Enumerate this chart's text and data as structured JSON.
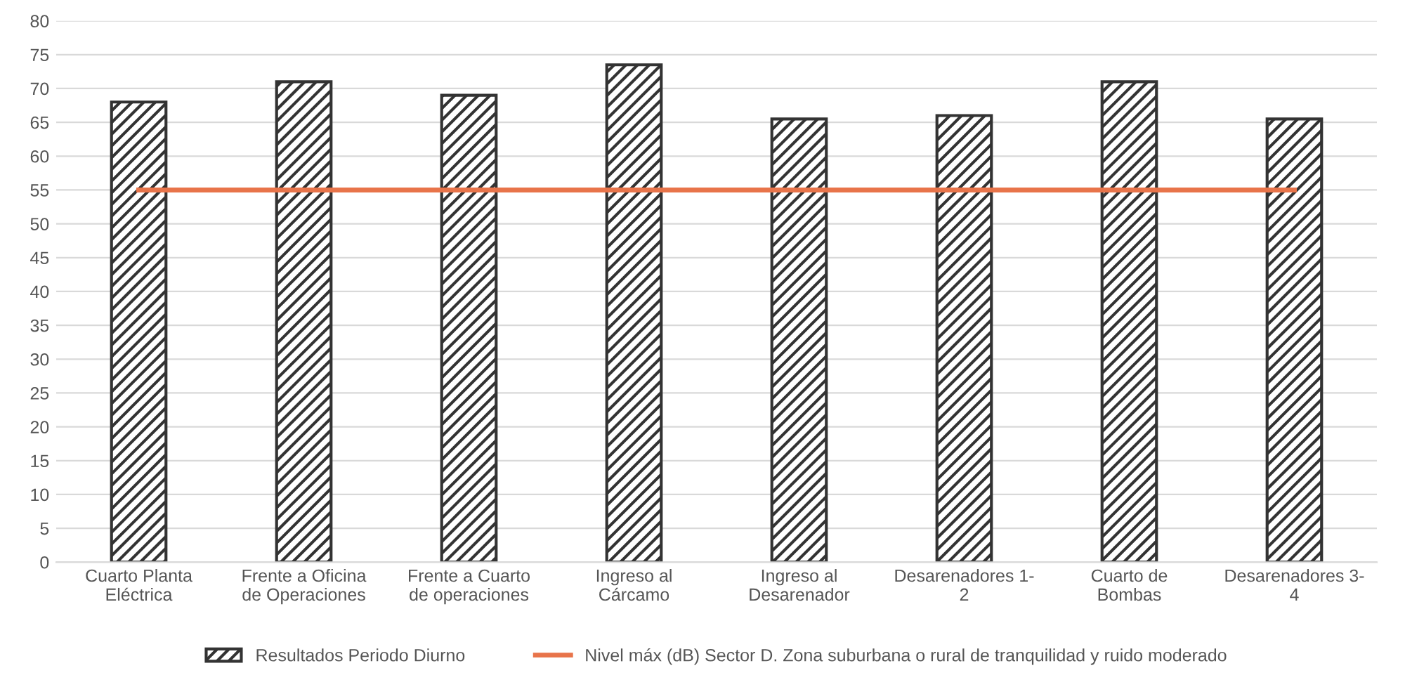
{
  "chart_data": {
    "type": "bar",
    "categories": [
      "Cuarto Planta\nEléctrica",
      "Frente a Oficina\nde Operaciones",
      "Frente a Cuarto\nde operaciones",
      "Ingreso al\nCárcamo",
      "Ingreso al\nDesarenador",
      "Desarenadores 1-\n2",
      "Cuarto de\nBombas",
      "Desarenadores 3-\n4"
    ],
    "series": [
      {
        "name": "Resultados Periodo Diurno",
        "color": "#333333",
        "values": [
          68,
          71,
          69,
          73.5,
          65.5,
          66,
          71,
          65.5
        ]
      },
      {
        "name": "Nivel máx (dB) Sector D. Zona suburbana o rural de tranquilidad y ruido moderado",
        "type": "line",
        "color": "#e8744a",
        "values": [
          55,
          55,
          55,
          55,
          55,
          55,
          55,
          55
        ]
      }
    ],
    "ylim": [
      0,
      80
    ],
    "yticks": [
      0,
      5,
      10,
      15,
      20,
      25,
      30,
      35,
      40,
      45,
      50,
      55,
      60,
      65,
      70,
      75,
      80
    ],
    "grid": "y",
    "legend": "bottom"
  }
}
